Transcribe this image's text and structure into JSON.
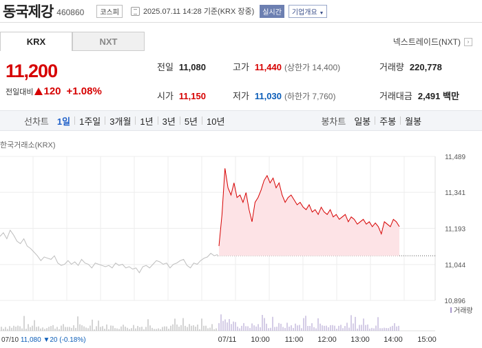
{
  "header": {
    "name": "동국제강",
    "code": "460860",
    "market": "코스피",
    "datetime": "2025.07.11 14:28 기준(KRX 장중)",
    "realtime": "실시간",
    "company": "기업개요"
  },
  "tabs": [
    {
      "label": "KRX"
    },
    {
      "label": "NXT"
    }
  ],
  "nextrade": "넥스트레이드(NXT)",
  "price": {
    "current": "11,200",
    "change_label": "전일대비",
    "change": "120",
    "change_pct": "+1.08%"
  },
  "stats": {
    "prev_close": {
      "label": "전일",
      "value": "11,080"
    },
    "high": {
      "label": "고가",
      "value": "11,440",
      "sub": "(상한가 14,400)"
    },
    "volume": {
      "label": "거래량",
      "value": "220,778"
    },
    "open": {
      "label": "시가",
      "value": "11,150"
    },
    "low": {
      "label": "저가",
      "value": "11,030",
      "sub": "(하한가 7,760)"
    },
    "amount": {
      "label": "거래대금",
      "value": "2,491 백만"
    }
  },
  "periods": {
    "line_label": "선차트",
    "line_items": [
      "1일",
      "1주일",
      "3개월",
      "1년",
      "3년",
      "5년",
      "10년"
    ],
    "active": "1일",
    "candle_label": "봉차트",
    "candle_items": [
      "일봉",
      "주봉",
      "월봉"
    ]
  },
  "chart_title": "한국거래소(KRX)",
  "chart_data": {
    "type": "line",
    "y_ticks": [
      11489,
      11341,
      11193,
      11044,
      10896
    ],
    "y_tick_labels": [
      "11,489",
      "11,341",
      "11,193",
      "11,044",
      "10,896"
    ],
    "ylim": [
      10896,
      11489
    ],
    "prev_close": 11080,
    "prev_day": {
      "x_start": "09:00",
      "x_end": "15:30",
      "values": [
        11160,
        11175,
        11150,
        11185,
        11165,
        11140,
        11130,
        11150,
        11120,
        11110,
        11095,
        11080,
        11060,
        11075,
        11070,
        11065,
        11080,
        11050,
        11040,
        11045,
        11060,
        11045,
        11055,
        11040,
        11065,
        11050,
        11045,
        11030,
        11050,
        11045,
        11040,
        11035,
        11040,
        11030,
        11050,
        11040,
        11045,
        11030,
        11035,
        11025,
        11030,
        11010,
        11035,
        11040,
        11030,
        11045,
        11060,
        11055,
        11045,
        11050,
        11030,
        11045,
        11050,
        11060,
        11065,
        11040,
        11030,
        11050,
        11045,
        11060,
        11070,
        11075,
        11090,
        11080,
        11085
      ]
    },
    "today": {
      "x_start": "09:00",
      "values": [
        11120,
        11250,
        11440,
        11360,
        11330,
        11380,
        11320,
        11330,
        11300,
        11340,
        11270,
        11220,
        11300,
        11320,
        11350,
        11390,
        11410,
        11380,
        11400,
        11360,
        11380,
        11330,
        11300,
        11320,
        11330,
        11310,
        11290,
        11300,
        11280,
        11270,
        11290,
        11260,
        11270,
        11250,
        11280,
        11260,
        11250,
        11270,
        11240,
        11250,
        11230,
        11240,
        11250,
        11220,
        11240,
        11230,
        11210,
        11220,
        11230,
        11210,
        11220,
        11200,
        11215,
        11200,
        11170,
        11220,
        11210,
        11200,
        11230,
        11220,
        11200
      ]
    },
    "x_labels": [
      "07/11",
      "10:00",
      "11:00",
      "12:00",
      "13:00",
      "14:00",
      "15:00"
    ],
    "volume_label": "거래량",
    "prev_info": {
      "date": "07/10",
      "price": "11,080",
      "change": "20",
      "pct": "(-0.18%)"
    },
    "colors": {
      "up": "#d60000",
      "down": "#0b5db8",
      "line_prev": "#bdbdbd",
      "fill": "#fde3e6",
      "volume_prev": "#aaaaaa",
      "volume_today": "#a898cc"
    }
  }
}
